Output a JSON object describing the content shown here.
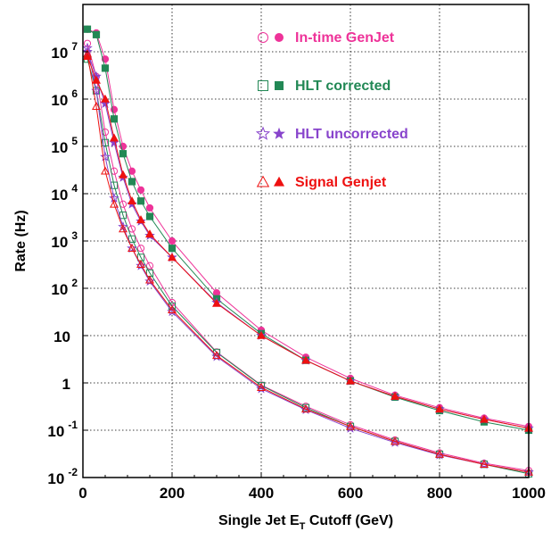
{
  "chart_data": {
    "type": "scatter",
    "xlabel": {
      "main": "Single Jet E",
      "sub": "T",
      "rest": " Cutoff (GeV)"
    },
    "ylabel": "Rate (Hz)",
    "xlim": [
      0,
      1000
    ],
    "ylim": [
      0.01,
      100000000
    ],
    "yscale": "log",
    "grid": true,
    "legend_position": "top-right",
    "xticks": [
      {
        "v": 0,
        "label": "0"
      },
      {
        "v": 200,
        "label": "200"
      },
      {
        "v": 400,
        "label": "400"
      },
      {
        "v": 600,
        "label": "600"
      },
      {
        "v": 800,
        "label": "800"
      },
      {
        "v": 1000,
        "label": "1000"
      }
    ],
    "yticks": [
      {
        "v": 0.01,
        "base": "10",
        "exp": "-2"
      },
      {
        "v": 0.1,
        "base": "10",
        "exp": "-1"
      },
      {
        "v": 1,
        "base": "1",
        "exp": ""
      },
      {
        "v": 10,
        "base": "10",
        "exp": ""
      },
      {
        "v": 100,
        "base": "10",
        "exp": "2"
      },
      {
        "v": 1000,
        "base": "10",
        "exp": "3"
      },
      {
        "v": 10000,
        "base": "10",
        "exp": "4"
      },
      {
        "v": 100000,
        "base": "10",
        "exp": "5"
      },
      {
        "v": 1000000,
        "base": "10",
        "exp": "6"
      },
      {
        "v": 10000000,
        "base": "10",
        "exp": "7"
      }
    ],
    "series": [
      {
        "name": "In-time GenJet",
        "color": "#ee3399",
        "marker": "circle",
        "fill": "open",
        "x": [
          10,
          30,
          50,
          70,
          90,
          110,
          130,
          150,
          200,
          300,
          400,
          500,
          600,
          700,
          800,
          900,
          1000
        ],
        "y": [
          15000000,
          3000000,
          200000,
          30000,
          6000,
          1800,
          700,
          300,
          50,
          4.5,
          0.9,
          0.32,
          0.13,
          0.062,
          0.033,
          0.02,
          0.014
        ]
      },
      {
        "name": "In-time GenJet",
        "color": "#ee3399",
        "marker": "circle",
        "fill": "filled",
        "x": [
          10,
          30,
          50,
          70,
          90,
          110,
          130,
          150,
          200,
          300,
          400,
          500,
          600,
          700,
          800,
          900,
          1000
        ],
        "y": [
          30000000,
          25000000,
          7000000,
          600000,
          100000,
          30000,
          12000,
          5000,
          1000,
          80,
          13,
          3.5,
          1.25,
          0.55,
          0.3,
          0.18,
          0.12
        ]
      },
      {
        "name": "HLT corrected",
        "color": "#228855",
        "marker": "square",
        "fill": "open",
        "x": [
          10,
          30,
          50,
          70,
          90,
          110,
          130,
          150,
          200,
          300,
          400,
          500,
          600,
          700,
          800,
          900,
          1000
        ],
        "y": [
          7000000,
          1500000,
          120000,
          15000,
          3500,
          1100,
          450,
          210,
          42,
          4.4,
          0.88,
          0.3,
          0.12,
          0.058,
          0.031,
          0.019,
          0.012
        ]
      },
      {
        "name": "HLT corrected",
        "color": "#228855",
        "marker": "square",
        "fill": "filled",
        "x": [
          10,
          30,
          50,
          70,
          90,
          110,
          130,
          150,
          200,
          300,
          400,
          500,
          600,
          700,
          800,
          900,
          1000
        ],
        "y": [
          30000000,
          23000000,
          4500000,
          380000,
          70000,
          18000,
          7000,
          3300,
          700,
          60,
          11,
          3,
          1.1,
          0.5,
          0.26,
          0.15,
          0.1
        ]
      },
      {
        "name": "HLT uncorrected",
        "color": "#8844cc",
        "marker": "star",
        "fill": "open",
        "x": [
          10,
          30,
          50,
          70,
          90,
          110,
          130,
          150,
          200,
          300,
          400,
          500,
          600,
          700,
          800,
          900,
          1000
        ],
        "y": [
          12000000,
          1500000,
          60000,
          8000,
          2000,
          700,
          300,
          140,
          32,
          3.6,
          0.75,
          0.27,
          0.11,
          0.055,
          0.03,
          0.019,
          0.013
        ]
      },
      {
        "name": "HLT uncorrected",
        "color": "#8844cc",
        "marker": "star",
        "fill": "filled",
        "x": [
          10,
          30,
          50,
          70,
          90,
          110,
          130,
          150,
          200,
          300,
          400,
          500,
          600,
          700,
          800,
          900,
          1000
        ],
        "y": [
          10000000,
          3000000,
          800000,
          120000,
          22000,
          6000,
          2600,
          1300,
          450,
          50,
          10,
          3,
          1.1,
          0.52,
          0.28,
          0.17,
          0.11
        ]
      },
      {
        "name": "Signal Genjet",
        "color": "#ee1111",
        "marker": "triangle",
        "fill": "open",
        "x": [
          10,
          30,
          50,
          70,
          90,
          110,
          130,
          150,
          200,
          300,
          400,
          500,
          600,
          700,
          800,
          900,
          1000
        ],
        "y": [
          9000000,
          700000,
          30000,
          6000,
          1800,
          700,
          320,
          150,
          35,
          3.8,
          0.8,
          0.28,
          0.12,
          0.058,
          0.031,
          0.019,
          0.013
        ]
      },
      {
        "name": "Signal Genjet",
        "color": "#ee1111",
        "marker": "triangle",
        "fill": "filled",
        "x": [
          10,
          30,
          50,
          70,
          90,
          110,
          130,
          150,
          200,
          300,
          400,
          500,
          600,
          700,
          800,
          900,
          1000
        ],
        "y": [
          8000000,
          2500000,
          1000000,
          150000,
          25000,
          7000,
          2800,
          1400,
          450,
          48,
          10,
          3,
          1.1,
          0.52,
          0.28,
          0.17,
          0.11
        ]
      }
    ],
    "legend": [
      {
        "label": "In-time GenJet",
        "color": "#ee3399",
        "marker": "circle"
      },
      {
        "label": "HLT corrected",
        "color": "#228855",
        "marker": "square"
      },
      {
        "label": "HLT uncorrected",
        "color": "#8844cc",
        "marker": "star"
      },
      {
        "label": "Signal Genjet",
        "color": "#ee1111",
        "marker": "triangle"
      }
    ]
  }
}
